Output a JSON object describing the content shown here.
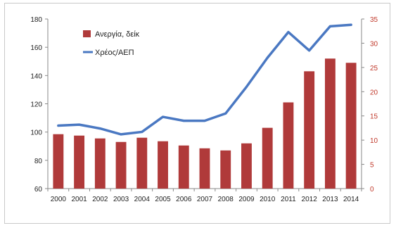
{
  "chart_data": {
    "type": "bar+line",
    "categories": [
      "2000",
      "2001",
      "2002",
      "2003",
      "2004",
      "2005",
      "2006",
      "2007",
      "2008",
      "2009",
      "2010",
      "2011",
      "2012",
      "2013",
      "2014"
    ],
    "series": [
      {
        "name": "Ανεργία, δείκ",
        "type": "bar",
        "axis": "left",
        "color": "#b03a3a",
        "values": [
          98.5,
          97.5,
          95.5,
          93,
          96,
          93.5,
          90.5,
          88.5,
          87,
          92,
          103,
          121,
          143,
          152,
          149
        ]
      },
      {
        "name": "Χρέος/ΑΕΠ",
        "type": "line",
        "axis": "right",
        "color": "#4a78c2",
        "values": [
          13,
          13.2,
          12.4,
          11.2,
          11.7,
          14.8,
          14,
          14,
          15.5,
          21,
          27,
          32.3,
          28.5,
          33.5,
          33.8
        ]
      }
    ],
    "y_left": {
      "min": 60,
      "max": 180,
      "ticks": [
        "60",
        "80",
        "100",
        "120",
        "140",
        "160",
        "180"
      ],
      "values": [
        60,
        80,
        100,
        120,
        140,
        160,
        180
      ]
    },
    "y_right": {
      "min": 0,
      "max": 35,
      "ticks": [
        "0",
        "5",
        "10",
        "15",
        "20",
        "25",
        "30",
        "35"
      ],
      "values": [
        0,
        5,
        10,
        15,
        20,
        25,
        30,
        35
      ],
      "color": "#c0392b"
    },
    "legend_position": "top-left",
    "grid": false,
    "title": "",
    "xlabel": "",
    "ylabel": ""
  }
}
